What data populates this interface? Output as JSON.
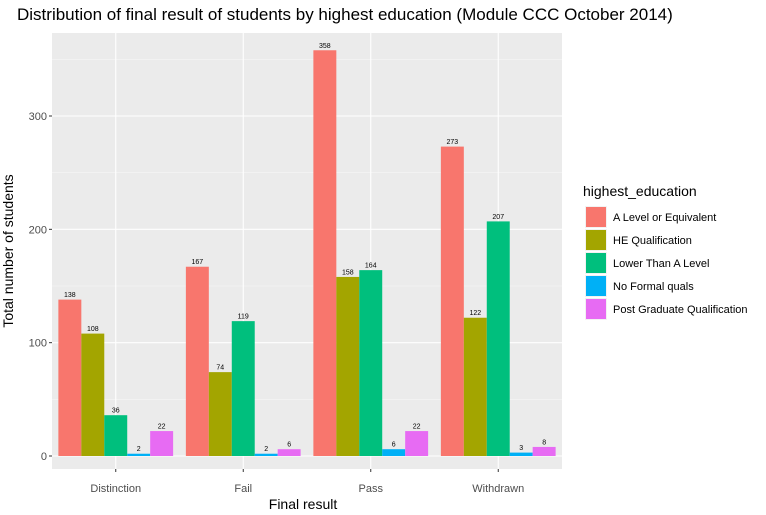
{
  "chart_data": {
    "type": "bar",
    "title": "Distribution of final result of students by highest education (Module CCC October 2014)",
    "xlabel": "Final result",
    "ylabel": "Total number of students",
    "categories": [
      "Distinction",
      "Fail",
      "Pass",
      "Withdrawn"
    ],
    "ylim": [
      0,
      375
    ],
    "yticks": [
      0,
      100,
      200,
      300
    ],
    "grid": true,
    "legend_title": "highest_education",
    "legend_position": "right",
    "series": [
      {
        "name": "A Level or Equivalent",
        "color": "#F8766D",
        "values": [
          138,
          167,
          358,
          273
        ]
      },
      {
        "name": "HE Qualification",
        "color": "#A3A500",
        "values": [
          108,
          74,
          158,
          122
        ]
      },
      {
        "name": "Lower Than A Level",
        "color": "#00BF7D",
        "values": [
          36,
          119,
          164,
          207
        ]
      },
      {
        "name": "No Formal quals",
        "color": "#00B0F6",
        "values": [
          2,
          2,
          6,
          3
        ]
      },
      {
        "name": "Post Graduate Qualification",
        "color": "#E76BF3",
        "values": [
          22,
          6,
          22,
          8
        ]
      }
    ]
  }
}
